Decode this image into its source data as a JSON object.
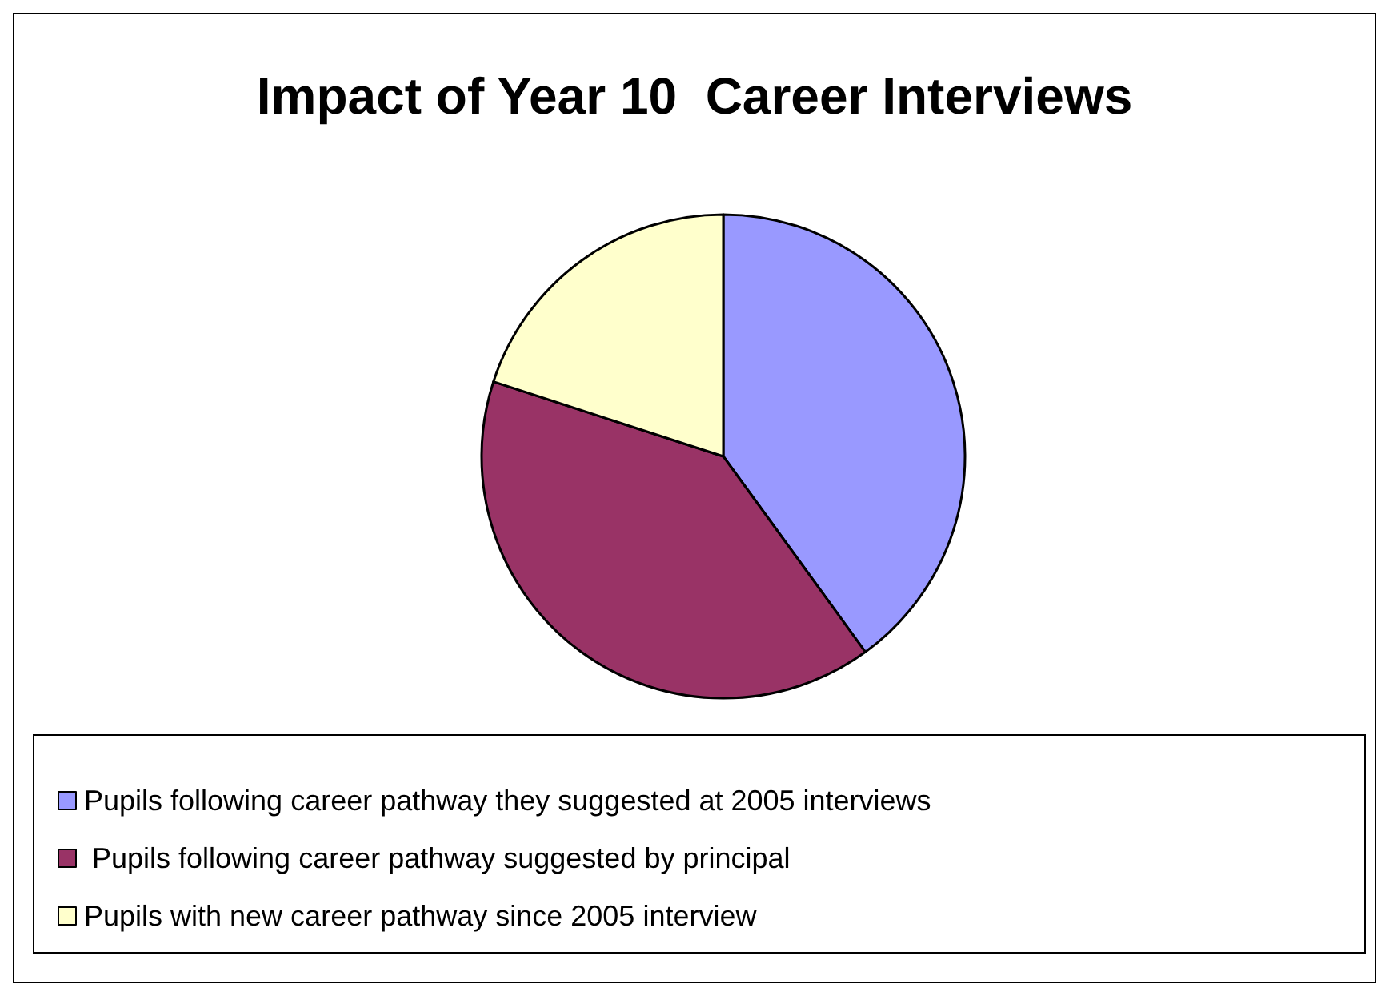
{
  "chart_data": {
    "type": "pie",
    "title": "Impact of Year 10  Career Interviews",
    "categories": [
      "Pupils following career pathway they suggested at 2005 interviews",
      " Pupils following career pathway suggested by principal",
      "Pupils with new career pathway since 2005 interview"
    ],
    "values": [
      40,
      40,
      20
    ],
    "colors": [
      "#9999ff",
      "#993366",
      "#ffffcc"
    ],
    "legend": "bottom"
  }
}
